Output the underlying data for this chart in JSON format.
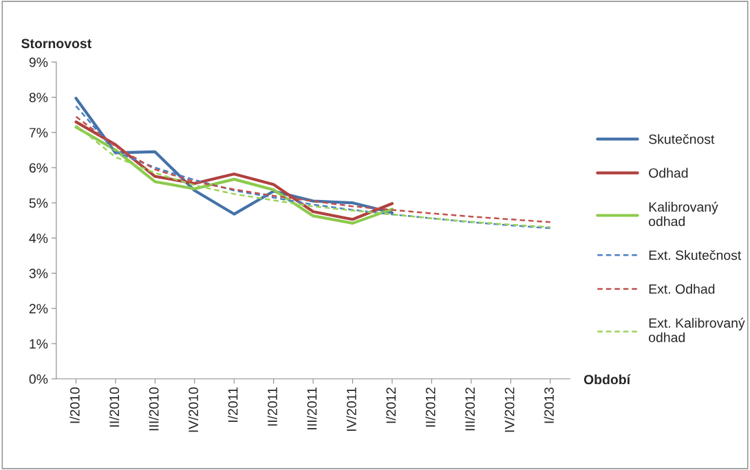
{
  "chart_data": {
    "type": "line",
    "ylabel": "Stornovost",
    "xlabel": "Období",
    "categories": [
      "I/2010",
      "II/2010",
      "III/2010",
      "IV/2010",
      "I/2011",
      "II/2011",
      "III/2011",
      "IV/2011",
      "I/2012",
      "II/2012",
      "III/2012",
      "IV/2012",
      "I/2013"
    ],
    "series": [
      {
        "name": "Skutečnost",
        "color": "#4472a8",
        "line_style": "solid",
        "values": [
          7.97,
          6.42,
          6.45,
          5.35,
          4.68,
          5.33,
          5.05,
          5.0,
          4.72,
          null,
          null,
          null,
          null
        ]
      },
      {
        "name": "Odhad",
        "color": "#b0413e",
        "line_style": "solid",
        "values": [
          7.3,
          6.65,
          5.75,
          5.55,
          5.82,
          5.52,
          4.75,
          4.53,
          4.98,
          null,
          null,
          null,
          null
        ]
      },
      {
        "name": "Kalibrovaný odhad",
        "color": "#8cca4d",
        "line_style": "solid",
        "values": [
          7.15,
          6.5,
          5.6,
          5.4,
          5.67,
          5.37,
          4.63,
          4.42,
          4.82,
          null,
          null,
          null,
          null
        ]
      },
      {
        "name": "Ext. Skutečnost",
        "color": "#4a7fc4",
        "line_style": "dashed",
        "values": [
          7.75,
          6.45,
          6.0,
          5.65,
          5.35,
          5.15,
          4.95,
          4.8,
          4.67,
          4.56,
          4.45,
          4.36,
          4.28
        ]
      },
      {
        "name": "Ext. Odhad",
        "color": "#c0504d",
        "line_style": "dashed",
        "values": [
          7.45,
          6.6,
          5.95,
          5.6,
          5.38,
          5.2,
          5.05,
          4.9,
          4.8,
          4.7,
          4.61,
          4.53,
          4.45
        ]
      },
      {
        "name": "Ext. Kalibrovaný odhad",
        "color": "#9bd35a",
        "line_style": "dashed",
        "values": [
          7.2,
          6.3,
          5.85,
          5.5,
          5.25,
          5.07,
          4.9,
          4.78,
          4.67,
          4.56,
          4.46,
          4.38,
          4.31
        ]
      }
    ],
    "ylim": [
      0,
      9
    ],
    "yticks": [
      {
        "value": 0,
        "label": "0%"
      },
      {
        "value": 1,
        "label": "1%"
      },
      {
        "value": 2,
        "label": "2%"
      },
      {
        "value": 3,
        "label": "3%"
      },
      {
        "value": 4,
        "label": "4%"
      },
      {
        "value": 5,
        "label": "5%"
      },
      {
        "value": 6,
        "label": "6%"
      },
      {
        "value": 7,
        "label": "7%"
      },
      {
        "value": 8,
        "label": "8%"
      },
      {
        "value": 9,
        "label": "9%"
      }
    ],
    "grid": false,
    "legend": "right",
    "marker": "none"
  }
}
